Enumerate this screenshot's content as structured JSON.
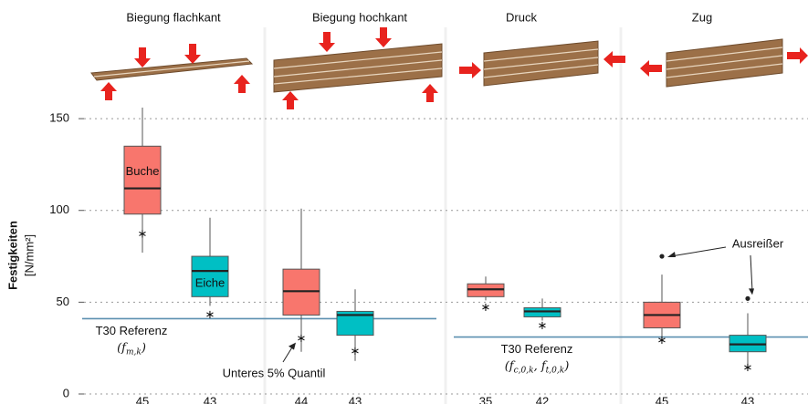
{
  "chart_data": {
    "type": "box",
    "y_label": "Festigkeiten",
    "y_unit": "[N/mm²]",
    "categories": [
      "Biegung flachkant",
      "Biegung hochkant",
      "Druck",
      "Zug"
    ],
    "ylim": [
      0,
      158
    ],
    "yticks": [
      0,
      50,
      100,
      150
    ],
    "grid": true,
    "series": [
      {
        "name": "Buche",
        "color": "#f8766d",
        "whisker_high": [
          156,
          101,
          64,
          65
        ],
        "q3": [
          135,
          68,
          60,
          50
        ],
        "median": [
          112,
          56,
          57,
          43
        ],
        "q1": [
          98,
          43,
          53,
          36
        ],
        "whisker_low": [
          77,
          23,
          51,
          28
        ],
        "quantile_5": [
          89,
          32,
          49,
          31
        ],
        "outliers": [
          [],
          [],
          [],
          [
            75
          ]
        ],
        "n": [
          45,
          44,
          35,
          45
        ]
      },
      {
        "name": "Eiche",
        "color": "#00bfc4",
        "whisker_high": [
          96,
          57,
          52,
          44
        ],
        "q3": [
          75,
          45,
          47,
          32
        ],
        "median": [
          67,
          43,
          45,
          27
        ],
        "q1": [
          53,
          32,
          42,
          23
        ],
        "whisker_low": [
          48,
          18,
          40,
          13
        ],
        "quantile_5": [
          45,
          25,
          39,
          16
        ],
        "outliers": [
          [],
          [],
          [],
          [
            52
          ]
        ],
        "n": [
          43,
          43,
          42,
          43
        ]
      }
    ],
    "reference_lines": [
      {
        "label": "T30 Referenz",
        "value": 41,
        "formula_parts": [
          "(f",
          "m,k",
          ")"
        ]
      },
      {
        "label": "T30 Referenz",
        "value": 31,
        "formula_parts": [
          "(f",
          "c,0,k",
          ", f",
          "t,0,k",
          ")"
        ]
      }
    ],
    "annotations": {
      "quantile": "Unteres 5% Quantil",
      "outlier": "Ausreißer"
    }
  }
}
